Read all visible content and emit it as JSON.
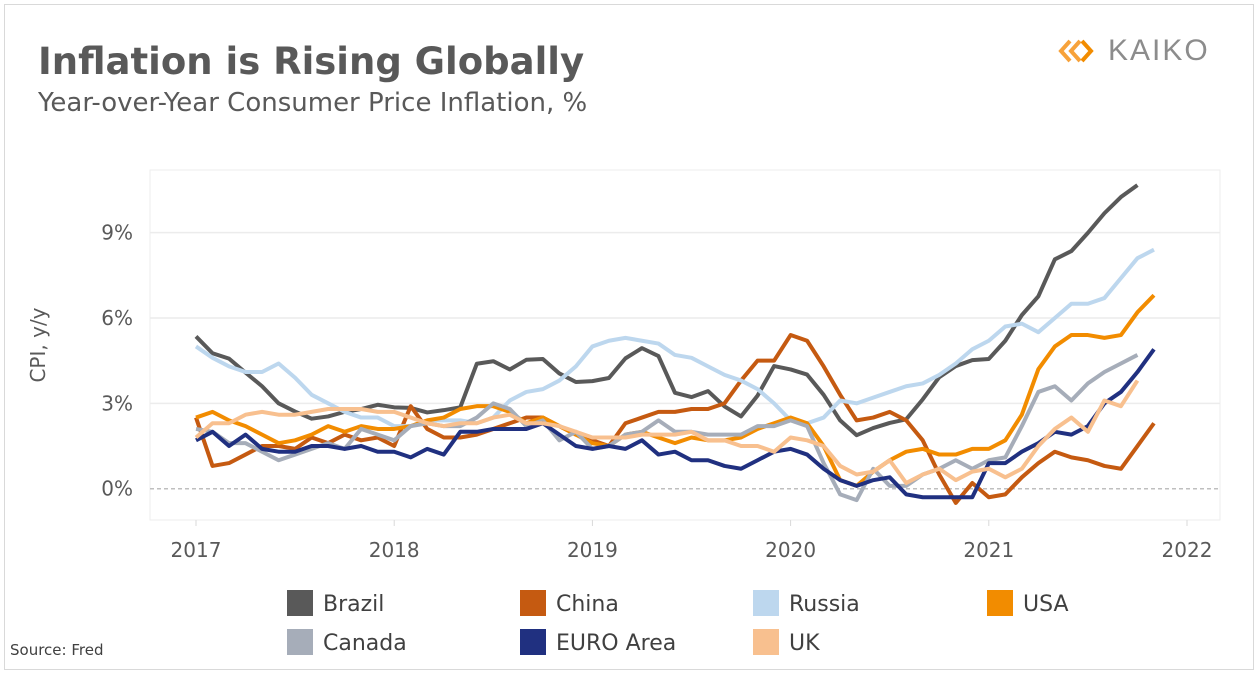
{
  "header": {
    "title": "Inflation is Rising Globally",
    "subtitle": "Year-over-Year Consumer Price Inflation, %",
    "logo_text": "KAIKO"
  },
  "footer": {
    "source": "Source: Fred"
  },
  "chart_data": {
    "type": "line",
    "title": "Inflation is Rising Globally",
    "subtitle": "Year-over-Year Consumer Price Inflation, %",
    "xlabel": "",
    "ylabel": "CPI, y/y",
    "x_start": "2017-01",
    "x_frequency": "monthly",
    "xlim": [
      2016.75,
      2022.15
    ],
    "ylim": [
      -1.1,
      11.2
    ],
    "x_ticks": [
      2017,
      2018,
      2019,
      2020,
      2021,
      2022
    ],
    "x_tick_labels": [
      "2017",
      "2018",
      "2019",
      "2020",
      "2021",
      "2022"
    ],
    "y_ticks": [
      0,
      3,
      6,
      9
    ],
    "y_tick_labels": [
      "0%",
      "3%",
      "6%",
      "9%"
    ],
    "grid": true,
    "zero_line": "dashed",
    "legend_position": "bottom",
    "series": [
      {
        "name": "Brazil",
        "color": "#595959",
        "values": [
          5.35,
          4.76,
          4.57,
          4.08,
          3.6,
          3.0,
          2.71,
          2.46,
          2.54,
          2.7,
          2.8,
          2.95,
          2.86,
          2.84,
          2.68,
          2.76,
          2.86,
          4.39,
          4.48,
          4.19,
          4.53,
          4.56,
          4.05,
          3.75,
          3.78,
          3.89,
          4.58,
          4.94,
          4.66,
          3.37,
          3.22,
          3.43,
          2.89,
          2.54,
          3.27,
          4.31,
          4.19,
          4.01,
          3.3,
          2.4,
          1.88,
          2.13,
          2.31,
          2.44,
          3.14,
          3.92,
          4.31,
          4.52,
          4.56,
          5.2,
          6.1,
          6.76,
          8.06,
          8.35,
          8.99,
          9.68,
          10.25,
          10.67
        ]
      },
      {
        "name": "China",
        "color": "#c55a11",
        "values": [
          2.5,
          0.8,
          0.9,
          1.2,
          1.5,
          1.5,
          1.4,
          1.8,
          1.6,
          1.9,
          1.7,
          1.8,
          1.5,
          2.9,
          2.1,
          1.8,
          1.8,
          1.9,
          2.1,
          2.3,
          2.5,
          2.5,
          2.2,
          1.9,
          1.7,
          1.5,
          2.3,
          2.5,
          2.7,
          2.7,
          2.8,
          2.8,
          3.0,
          3.8,
          4.5,
          4.5,
          5.4,
          5.2,
          4.3,
          3.3,
          2.4,
          2.5,
          2.7,
          2.4,
          1.7,
          0.5,
          -0.5,
          0.2,
          -0.3,
          -0.2,
          0.4,
          0.9,
          1.3,
          1.1,
          1.0,
          0.8,
          0.7,
          1.5,
          2.3
        ]
      },
      {
        "name": "Russia",
        "color": "#bdd7ee",
        "values": [
          5.0,
          4.6,
          4.3,
          4.1,
          4.1,
          4.4,
          3.9,
          3.3,
          3.0,
          2.7,
          2.5,
          2.5,
          2.2,
          2.2,
          2.4,
          2.4,
          2.4,
          2.3,
          2.5,
          3.1,
          3.4,
          3.5,
          3.8,
          4.3,
          5.0,
          5.2,
          5.3,
          5.2,
          5.1,
          4.7,
          4.6,
          4.3,
          4.0,
          3.8,
          3.5,
          3.0,
          2.4,
          2.3,
          2.5,
          3.1,
          3.0,
          3.2,
          3.4,
          3.6,
          3.7,
          4.0,
          4.4,
          4.9,
          5.2,
          5.7,
          5.8,
          5.5,
          6.0,
          6.5,
          6.5,
          6.7,
          7.4,
          8.1,
          8.4
        ]
      },
      {
        "name": "USA",
        "color": "#f28c00",
        "values": [
          2.5,
          2.7,
          2.4,
          2.2,
          1.9,
          1.6,
          1.7,
          1.9,
          2.2,
          2.0,
          2.2,
          2.1,
          2.1,
          2.2,
          2.4,
          2.5,
          2.8,
          2.9,
          2.9,
          2.7,
          2.3,
          2.5,
          2.2,
          1.9,
          1.6,
          1.5,
          1.9,
          2.0,
          1.8,
          1.6,
          1.8,
          1.7,
          1.7,
          1.8,
          2.1,
          2.3,
          2.5,
          2.3,
          1.5,
          0.3,
          0.1,
          0.6,
          1.0,
          1.3,
          1.4,
          1.2,
          1.2,
          1.4,
          1.4,
          1.7,
          2.6,
          4.2,
          5.0,
          5.4,
          5.4,
          5.3,
          5.4,
          6.2,
          6.8
        ]
      },
      {
        "name": "Canada",
        "color": "#a6adb9",
        "values": [
          2.1,
          2.0,
          1.6,
          1.6,
          1.3,
          1.0,
          1.2,
          1.4,
          1.6,
          1.4,
          2.1,
          1.9,
          1.7,
          2.2,
          2.3,
          2.2,
          2.2,
          2.5,
          3.0,
          2.8,
          2.2,
          2.4,
          1.7,
          2.0,
          1.4,
          1.5,
          1.9,
          2.0,
          2.4,
          2.0,
          2.0,
          1.9,
          1.9,
          1.9,
          2.2,
          2.2,
          2.4,
          2.2,
          0.9,
          -0.2,
          -0.4,
          0.7,
          0.1,
          0.1,
          0.5,
          0.7,
          1.0,
          0.7,
          1.0,
          1.1,
          2.2,
          3.4,
          3.6,
          3.1,
          3.7,
          4.1,
          4.4,
          4.7
        ]
      },
      {
        "name": "EURO Area",
        "color": "#203080",
        "values": [
          1.7,
          2.0,
          1.5,
          1.9,
          1.4,
          1.3,
          1.3,
          1.5,
          1.5,
          1.4,
          1.5,
          1.3,
          1.3,
          1.1,
          1.4,
          1.2,
          2.0,
          2.0,
          2.1,
          2.1,
          2.1,
          2.3,
          1.9,
          1.5,
          1.4,
          1.5,
          1.4,
          1.7,
          1.2,
          1.3,
          1.0,
          1.0,
          0.8,
          0.7,
          1.0,
          1.3,
          1.4,
          1.2,
          0.7,
          0.3,
          0.1,
          0.3,
          0.4,
          -0.2,
          -0.3,
          -0.3,
          -0.3,
          -0.3,
          0.9,
          0.9,
          1.3,
          1.6,
          2.0,
          1.9,
          2.2,
          3.0,
          3.4,
          4.1,
          4.9
        ]
      },
      {
        "name": "UK",
        "color": "#f8c08f",
        "values": [
          1.8,
          2.3,
          2.3,
          2.6,
          2.7,
          2.6,
          2.6,
          2.7,
          2.8,
          2.8,
          2.8,
          2.7,
          2.7,
          2.5,
          2.3,
          2.2,
          2.3,
          2.3,
          2.5,
          2.6,
          2.3,
          2.3,
          2.2,
          2.0,
          1.8,
          1.8,
          1.8,
          1.9,
          1.9,
          1.9,
          2.0,
          1.7,
          1.7,
          1.5,
          1.5,
          1.3,
          1.8,
          1.7,
          1.5,
          0.8,
          0.5,
          0.6,
          1.0,
          0.2,
          0.5,
          0.7,
          0.3,
          0.6,
          0.7,
          0.4,
          0.7,
          1.5,
          2.1,
          2.5,
          2.0,
          3.1,
          2.9,
          3.8
        ]
      }
    ]
  }
}
